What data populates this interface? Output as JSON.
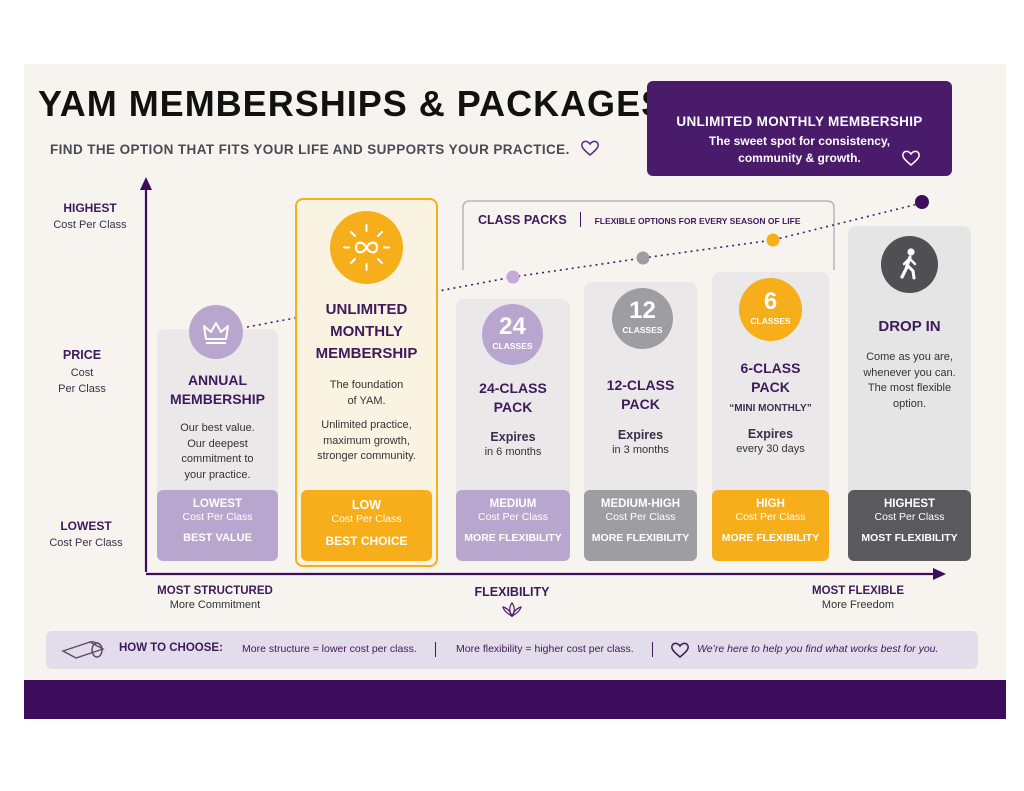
{
  "header": {
    "title": "YAM MEMBERSHIPS & PACKAGES",
    "subtitle": "FIND THE OPTION THAT FITS YOUR LIFE AND SUPPORTS YOUR PRACTICE.",
    "subtitle_icon": "heart-outline-icon"
  },
  "callout": {
    "title": "UNLIMITED MONTHLY MEMBERSHIP",
    "text": "The sweet spot for consistency, community & growth.",
    "icon": "heart-outline-icon"
  },
  "y_axis": {
    "top": {
      "bold": "HIGHEST",
      "sub": "Cost Per Class"
    },
    "middle": {
      "bold": "PRICE",
      "sub1": "Cost",
      "sub2": "Per Class"
    },
    "bottom": {
      "bold": "LOWEST",
      "sub": "Cost Per Class"
    }
  },
  "x_axis": {
    "left": {
      "bold": "MOST STRUCTURED",
      "sub": "More Commitment"
    },
    "center": {
      "bold": "FLEXIBILITY",
      "icon": "lotus-icon"
    },
    "right": {
      "bold": "MOST FLEXIBLE",
      "sub": "More Freedom"
    }
  },
  "class_packs_header": {
    "label": "CLASS PACKS",
    "sub": "FLEXIBLE OPTIONS FOR EVERY SEASON OF LIFE"
  },
  "options": [
    {
      "id": "annual",
      "icon": "crown-icon",
      "title_l1": "ANNUAL",
      "title_l2": "MEMBERSHIP",
      "desc": [
        "Our best value.",
        "Our deepest",
        "commitment to",
        "your practice."
      ],
      "badge": {
        "level": "LOWEST",
        "cost": "Cost Per Class",
        "tag": "BEST VALUE"
      }
    },
    {
      "id": "unlimited",
      "icon": "infinity-sun-icon",
      "title_l1": "UNLIMITED",
      "title_l2": "MONTHLY",
      "title_l3": "MEMBERSHIP",
      "desc_a": [
        "The foundation",
        "of YAM."
      ],
      "desc_b": [
        "Unlimited practice,",
        "maximum growth,",
        "stronger community."
      ],
      "badge": {
        "level": "LOW",
        "cost": "Cost Per Class",
        "tag": "BEST CHOICE"
      }
    },
    {
      "id": "pack24",
      "number": "24",
      "number_label": "CLASSES",
      "title_l1": "24-CLASS",
      "title_l2": "PACK",
      "expires": "Expires",
      "expires_sub": "in 6 months",
      "badge": {
        "level": "MEDIUM",
        "cost": "Cost Per Class",
        "tag": "MORE FLEXIBILITY"
      }
    },
    {
      "id": "pack12",
      "number": "12",
      "number_label": "CLASSES",
      "title_l1": "12-CLASS",
      "title_l2": "PACK",
      "expires": "Expires",
      "expires_sub": "in 3 months",
      "badge": {
        "level": "MEDIUM-HIGH",
        "cost": "Cost Per Class",
        "tag": "MORE FLEXIBILITY"
      }
    },
    {
      "id": "pack6",
      "number": "6",
      "number_label": "CLASSES",
      "title_l1": "6-CLASS",
      "title_l2": "PACK",
      "subtitle": "“MINI MONTHLY”",
      "expires": "Expires",
      "expires_sub": "every 30 days",
      "badge": {
        "level": "HIGH",
        "cost": "Cost Per Class",
        "tag": "MORE FLEXIBILITY"
      }
    },
    {
      "id": "dropin",
      "icon": "walking-person-icon",
      "title_l1": "DROP IN",
      "desc": [
        "Come as you are,",
        "whenever you can.",
        "The most flexible",
        "option."
      ],
      "badge": {
        "level": "HIGHEST",
        "cost": "Cost Per Class",
        "tag": "MOST FLEXIBILITY"
      }
    }
  ],
  "how_to_choose": {
    "icon": "yoga-mat-icon",
    "label": "HOW TO CHOOSE:",
    "tip1": "More structure = lower cost per class.",
    "tip2": "More flexibility = higher cost per class.",
    "tip3_icon": "heart-outline-icon",
    "tip3": "We’re here to help you find what works best for you."
  },
  "colors": {
    "purple_dark": "#3d0d5c",
    "purple_light": "#b9a6cf",
    "gold": "#f6ae1a",
    "gray": "#9e9ea2",
    "charcoal": "#5a5a5e",
    "card_bg": "#ebe8ea"
  }
}
